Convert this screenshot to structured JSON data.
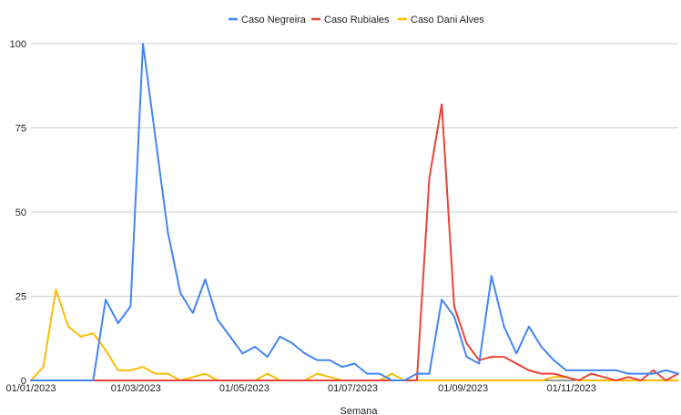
{
  "chart_data": {
    "type": "line",
    "title": "",
    "xlabel": "Semana",
    "ylabel": "",
    "ylim": [
      0,
      100
    ],
    "yticks": [
      0,
      25,
      50,
      75,
      100
    ],
    "xlim": [
      "2023-01-01",
      "2023-12-31"
    ],
    "xticks": [
      {
        "date": "2023-01-01",
        "label": "01/01/2023"
      },
      {
        "date": "2023-03-01",
        "label": "01/03/2023"
      },
      {
        "date": "2023-05-01",
        "label": "01/05/2023"
      },
      {
        "date": "2023-07-01",
        "label": "01/07/2023"
      },
      {
        "date": "2023-09-01",
        "label": "01/09/2023"
      },
      {
        "date": "2023-11-01",
        "label": "01/11/2023"
      }
    ],
    "grid": true,
    "legend": "top-center",
    "x": [
      "2023-01-01",
      "2023-01-08",
      "2023-01-15",
      "2023-01-22",
      "2023-01-29",
      "2023-02-05",
      "2023-02-12",
      "2023-02-19",
      "2023-02-26",
      "2023-03-05",
      "2023-03-12",
      "2023-03-19",
      "2023-03-26",
      "2023-04-02",
      "2023-04-09",
      "2023-04-16",
      "2023-04-23",
      "2023-04-30",
      "2023-05-07",
      "2023-05-14",
      "2023-05-21",
      "2023-05-28",
      "2023-06-04",
      "2023-06-11",
      "2023-06-18",
      "2023-06-25",
      "2023-07-02",
      "2023-07-09",
      "2023-07-16",
      "2023-07-23",
      "2023-07-30",
      "2023-08-06",
      "2023-08-13",
      "2023-08-20",
      "2023-08-27",
      "2023-09-03",
      "2023-09-10",
      "2023-09-17",
      "2023-09-24",
      "2023-10-01",
      "2023-10-08",
      "2023-10-15",
      "2023-10-22",
      "2023-10-29",
      "2023-11-05",
      "2023-11-12",
      "2023-11-19",
      "2023-11-26",
      "2023-12-03",
      "2023-12-10",
      "2023-12-17",
      "2023-12-24",
      "2023-12-31"
    ],
    "series": [
      {
        "name": "Caso Negreira",
        "color": "#4285f4",
        "values": [
          0,
          0,
          0,
          0,
          0,
          0,
          24,
          17,
          22,
          100,
          72,
          44,
          26,
          20,
          30,
          18,
          13,
          8,
          10,
          7,
          13,
          11,
          8,
          6,
          6,
          4,
          5,
          2,
          2,
          0,
          0,
          2,
          2,
          24,
          19,
          7,
          5,
          31,
          16,
          8,
          16,
          10,
          6,
          3,
          3,
          3,
          3,
          3,
          2,
          2,
          2,
          3,
          2
        ]
      },
      {
        "name": "Caso Rubiales",
        "color": "#ea4335",
        "values": [
          0,
          0,
          0,
          0,
          0,
          0,
          0,
          0,
          0,
          0,
          0,
          0,
          0,
          0,
          0,
          0,
          0,
          0,
          0,
          0,
          0,
          0,
          0,
          0,
          0,
          0,
          0,
          0,
          0,
          0,
          0,
          0,
          60,
          82,
          22,
          11,
          6,
          7,
          7,
          5,
          3,
          2,
          2,
          1,
          0,
          2,
          1,
          0,
          1,
          0,
          3,
          0,
          2
        ]
      },
      {
        "name": "Caso Dani Alves",
        "color": "#fbbc04",
        "values": [
          0,
          4,
          27,
          16,
          13,
          14,
          9,
          3,
          3,
          4,
          2,
          2,
          0,
          1,
          2,
          0,
          0,
          0,
          0,
          2,
          0,
          0,
          0,
          2,
          1,
          0,
          0,
          0,
          0,
          2,
          0,
          0,
          0,
          0,
          0,
          0,
          0,
          0,
          0,
          0,
          0,
          0,
          1,
          1,
          0,
          0,
          0,
          0,
          0,
          0,
          0,
          0,
          0
        ]
      }
    ]
  }
}
